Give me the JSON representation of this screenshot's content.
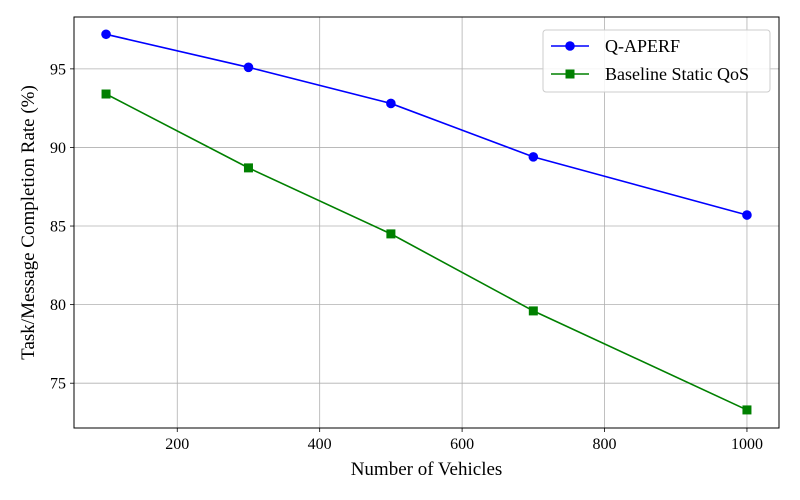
{
  "chart_data": {
    "type": "line",
    "title": "",
    "xlabel": "Number of Vehicles",
    "ylabel": "Task/Message Completion Rate (%)",
    "xlim": [
      55,
      1045
    ],
    "ylim": [
      72.15,
      98.3
    ],
    "x_ticks": [
      200,
      400,
      600,
      800,
      1000
    ],
    "y_ticks": [
      75,
      80,
      85,
      90,
      95
    ],
    "grid": true,
    "legend_position": "top-right",
    "x": [
      100,
      300,
      500,
      700,
      1000
    ],
    "series": [
      {
        "name": "Q-APERF",
        "values": [
          97.2,
          95.1,
          92.8,
          89.4,
          85.7
        ],
        "color": "#0000ff",
        "marker": "circle"
      },
      {
        "name": "Baseline Static QoS",
        "values": [
          93.4,
          88.7,
          84.5,
          79.6,
          73.3
        ],
        "color": "#008000",
        "marker": "square"
      }
    ]
  }
}
